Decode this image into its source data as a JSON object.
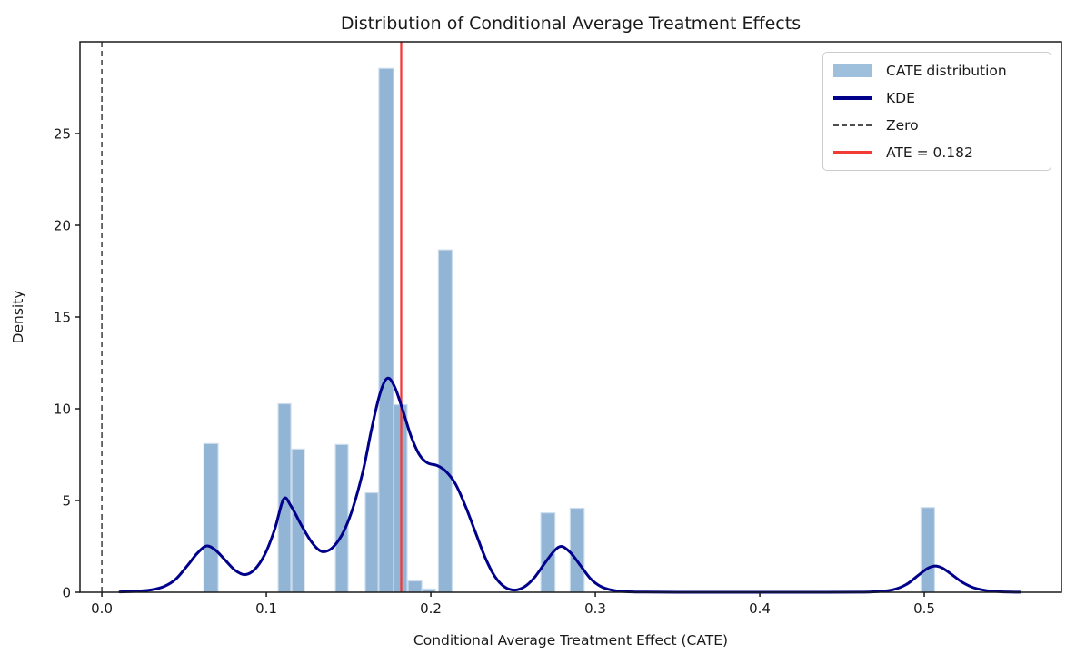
{
  "figure_title": "Distribution of Conditional Average Treatment Effects",
  "chart_data": {
    "type": "histogram_kde",
    "title": "Distribution of Conditional Average Treatment Effects",
    "xlabel": "Conditional Average Treatment Effect (CATE)",
    "ylabel": "Density",
    "xlim": [
      -0.0133,
      0.5834
    ],
    "ylim": [
      0,
      30
    ],
    "x_ticks": [
      0.0,
      0.1,
      0.2,
      0.3,
      0.4,
      0.5
    ],
    "x_tick_labels": [
      "0.0",
      "0.1",
      "0.2",
      "0.3",
      "0.4",
      "0.5"
    ],
    "y_ticks": [
      0,
      5,
      10,
      15,
      20,
      25
    ],
    "y_tick_labels": [
      "0",
      "5",
      "10",
      "15",
      "20",
      "25"
    ],
    "grid": false,
    "ate_value": 0.182,
    "zero_line_x": 0.0,
    "colors": {
      "hist_fill": "#92b5d6",
      "hist_edge": "#cbdcec",
      "kde": "#00008b",
      "zero_line": "#3d3d3d",
      "ate_line": "#f23b35",
      "axes": "#1a1a1a"
    },
    "bars": [
      {
        "x0": 0.062,
        "x1": 0.0707,
        "height": 8.1
      },
      {
        "x0": 0.1072,
        "x1": 0.1149,
        "height": 10.27
      },
      {
        "x0": 0.1155,
        "x1": 0.1232,
        "height": 7.8
      },
      {
        "x0": 0.142,
        "x1": 0.1497,
        "height": 8.05
      },
      {
        "x0": 0.1602,
        "x1": 0.168,
        "height": 5.42
      },
      {
        "x0": 0.1684,
        "x1": 0.1773,
        "height": 28.55
      },
      {
        "x0": 0.1773,
        "x1": 0.1856,
        "height": 10.22
      },
      {
        "x0": 0.1862,
        "x1": 0.1945,
        "height": 0.62
      },
      {
        "x0": 0.195,
        "x1": 0.2028,
        "height": 0.18
      },
      {
        "x0": 0.2046,
        "x1": 0.2129,
        "height": 18.66
      },
      {
        "x0": 0.2669,
        "x1": 0.2755,
        "height": 4.32
      },
      {
        "x0": 0.2847,
        "x1": 0.2932,
        "height": 4.58
      },
      {
        "x0": 0.498,
        "x1": 0.5063,
        "height": 4.62
      }
    ],
    "kde_points": [
      [
        0.011,
        0.02
      ],
      [
        0.02,
        0.05
      ],
      [
        0.03,
        0.13
      ],
      [
        0.038,
        0.32
      ],
      [
        0.045,
        0.72
      ],
      [
        0.052,
        1.45
      ],
      [
        0.058,
        2.12
      ],
      [
        0.0635,
        2.52
      ],
      [
        0.069,
        2.3
      ],
      [
        0.075,
        1.75
      ],
      [
        0.081,
        1.2
      ],
      [
        0.087,
        0.96
      ],
      [
        0.093,
        1.25
      ],
      [
        0.099,
        2.05
      ],
      [
        0.105,
        3.4
      ],
      [
        0.1105,
        5.08
      ],
      [
        0.115,
        4.7
      ],
      [
        0.121,
        3.7
      ],
      [
        0.127,
        2.8
      ],
      [
        0.132,
        2.3
      ],
      [
        0.136,
        2.22
      ],
      [
        0.141,
        2.5
      ],
      [
        0.147,
        3.3
      ],
      [
        0.153,
        4.7
      ],
      [
        0.159,
        6.7
      ],
      [
        0.164,
        8.9
      ],
      [
        0.169,
        10.8
      ],
      [
        0.1735,
        11.66
      ],
      [
        0.178,
        11.2
      ],
      [
        0.183,
        9.9
      ],
      [
        0.188,
        8.5
      ],
      [
        0.193,
        7.5
      ],
      [
        0.198,
        7.05
      ],
      [
        0.204,
        6.9
      ],
      [
        0.209,
        6.6
      ],
      [
        0.215,
        5.9
      ],
      [
        0.221,
        4.7
      ],
      [
        0.227,
        3.3
      ],
      [
        0.233,
        1.9
      ],
      [
        0.239,
        0.85
      ],
      [
        0.245,
        0.28
      ],
      [
        0.251,
        0.12
      ],
      [
        0.257,
        0.3
      ],
      [
        0.263,
        0.8
      ],
      [
        0.269,
        1.55
      ],
      [
        0.275,
        2.25
      ],
      [
        0.2795,
        2.5
      ],
      [
        0.285,
        2.15
      ],
      [
        0.291,
        1.45
      ],
      [
        0.297,
        0.75
      ],
      [
        0.303,
        0.33
      ],
      [
        0.31,
        0.12
      ],
      [
        0.318,
        0.04
      ],
      [
        0.33,
        0.01
      ],
      [
        0.35,
        0.0
      ],
      [
        0.38,
        0.0
      ],
      [
        0.41,
        0.0
      ],
      [
        0.44,
        0.0
      ],
      [
        0.46,
        0.005
      ],
      [
        0.472,
        0.04
      ],
      [
        0.481,
        0.14
      ],
      [
        0.489,
        0.42
      ],
      [
        0.496,
        0.9
      ],
      [
        0.502,
        1.3
      ],
      [
        0.5065,
        1.43
      ],
      [
        0.511,
        1.32
      ],
      [
        0.517,
        0.95
      ],
      [
        0.523,
        0.55
      ],
      [
        0.53,
        0.25
      ],
      [
        0.538,
        0.09
      ],
      [
        0.547,
        0.025
      ],
      [
        0.558,
        0.005
      ]
    ],
    "legend": {
      "position": "upper right",
      "entries": [
        {
          "label": "CATE distribution",
          "type": "patch",
          "color": "#9fc0dc"
        },
        {
          "label": "KDE",
          "type": "line",
          "color": "#00008b"
        },
        {
          "label": "Zero",
          "type": "dashed",
          "color": "#4d4d4d"
        },
        {
          "label": "ATE = 0.182",
          "type": "line",
          "color": "#f23b35"
        }
      ]
    }
  }
}
